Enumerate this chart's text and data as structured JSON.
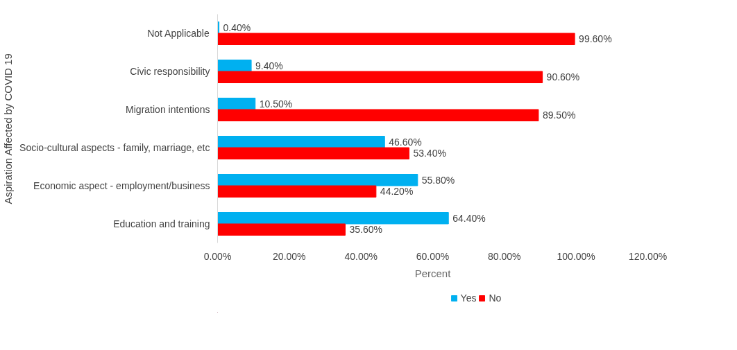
{
  "chart_data": {
    "type": "bar",
    "orientation": "horizontal",
    "xlabel": "Percent",
    "ylabel": "Aspiration Affected by COVID 19",
    "categories": [
      "Not Applicable",
      "Civic responsibility",
      "Migration intentions",
      "Socio-cultural aspects - family, marriage, etc",
      "Economic aspect - employment/business",
      "Education and training"
    ],
    "series": [
      {
        "name": "Yes",
        "color": "#00b0f0",
        "values": [
          0.4,
          9.4,
          10.5,
          46.6,
          55.8,
          64.4
        ],
        "value_labels": [
          "0.40%",
          "9.40%",
          "10.50%",
          "46.60%",
          "55.80%",
          "64.40%"
        ]
      },
      {
        "name": "No",
        "color": "#ff0000",
        "values": [
          99.6,
          90.6,
          89.5,
          53.4,
          44.2,
          35.6
        ],
        "value_labels": [
          "99.60%",
          "90.60%",
          "89.50%",
          "53.40%",
          "44.20%",
          "35.60%"
        ]
      }
    ],
    "xlim": [
      0,
      120
    ],
    "xticks": [
      {
        "value": 0,
        "label": "0.00%"
      },
      {
        "value": 20,
        "label": "20.00%"
      },
      {
        "value": 40,
        "label": "40.00%"
      },
      {
        "value": 60,
        "label": "60.00%"
      },
      {
        "value": 80,
        "label": "80.00%"
      },
      {
        "value": 100,
        "label": "100.00%"
      },
      {
        "value": 120,
        "label": "120.00%"
      }
    ],
    "grid": false,
    "legend": "bottom"
  }
}
